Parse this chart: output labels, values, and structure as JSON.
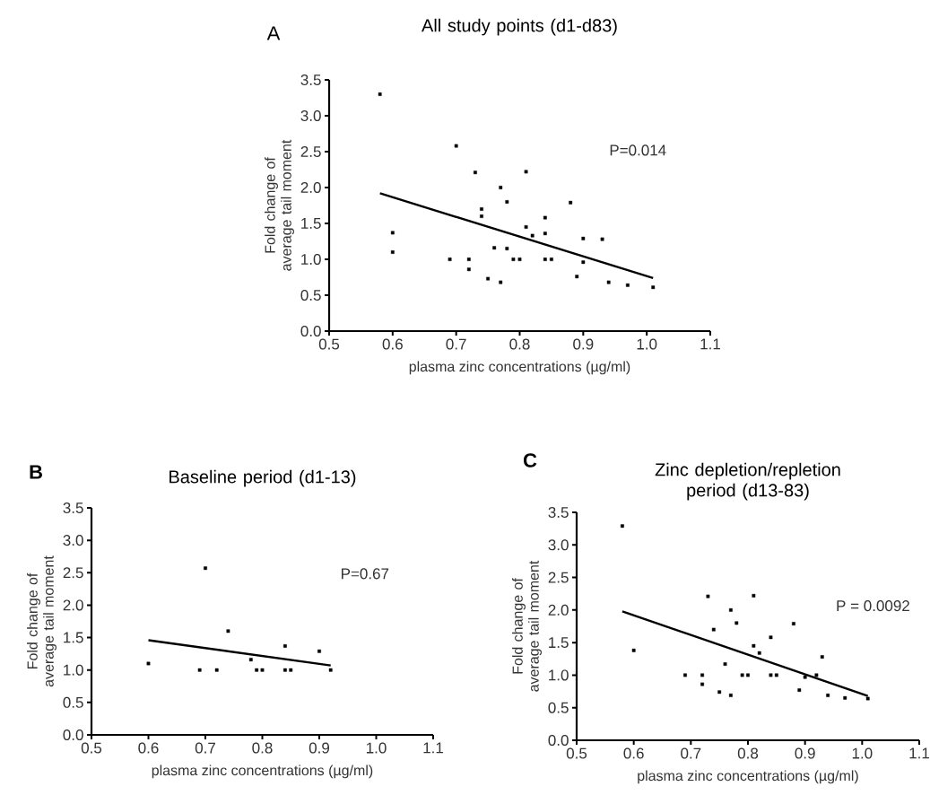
{
  "chart_data": [
    {
      "type": "scatter",
      "title": "All study points  (d1-d83)",
      "xlabel": "plasma zinc concentrations (µg/ml)",
      "ylabel": "Fold change of average tail moment",
      "annotations": [
        "A",
        "P=0.014"
      ],
      "xlim": [
        0.5,
        1.1
      ],
      "ylim": [
        0,
        3.5
      ],
      "xticks": [
        {
          "value": 0.5,
          "label": "0.5"
        },
        {
          "value": 0.6,
          "label": "0.6"
        },
        {
          "value": 0.7,
          "label": "0.7"
        },
        {
          "value": 0.8,
          "label": "0.8"
        },
        {
          "value": 0.9,
          "label": "0.9"
        },
        {
          "value": 1.0,
          "label": "1.0"
        },
        {
          "value": 1.1,
          "label": "1.1"
        }
      ],
      "yticks": [
        {
          "value": 0,
          "label": "0.0"
        },
        {
          "value": 0.5,
          "label": "0.5"
        },
        {
          "value": 1.0,
          "label": "1.0"
        },
        {
          "value": 1.5,
          "label": "1.5"
        },
        {
          "value": 2.0,
          "label": "2.0"
        },
        {
          "value": 2.5,
          "label": "2.5"
        },
        {
          "value": 3.0,
          "label": "3.0"
        },
        {
          "value": 3.5,
          "label": "3.5"
        }
      ],
      "series": [
        {
          "type": "scatter",
          "color": "#000000",
          "marker": "square",
          "x": [
            0.58,
            0.6,
            0.6,
            0.69,
            0.7,
            0.72,
            0.72,
            0.73,
            0.74,
            0.74,
            0.75,
            0.76,
            0.77,
            0.77,
            0.78,
            0.78,
            0.79,
            0.8,
            0.81,
            0.81,
            0.82,
            0.84,
            0.84,
            0.84,
            0.85,
            0.88,
            0.89,
            0.9,
            0.9,
            0.93,
            0.94,
            0.97,
            1.01
          ],
          "values": [
            3.3,
            1.37,
            1.1,
            1.0,
            2.58,
            1.0,
            0.86,
            2.21,
            1.7,
            1.6,
            0.73,
            1.16,
            2.0,
            0.68,
            1.8,
            1.15,
            1.0,
            1.0,
            2.22,
            1.45,
            1.33,
            1.58,
            1.36,
            1.0,
            1.0,
            1.79,
            0.76,
            1.29,
            0.96,
            1.28,
            0.68,
            0.64,
            0.61
          ]
        },
        {
          "type": "line",
          "color": "#000000",
          "marker": "none",
          "line_style": "solid",
          "x": [
            0.58,
            1.01
          ],
          "values": [
            1.92,
            0.74
          ]
        }
      ]
    },
    {
      "type": "scatter",
      "title": "Baseline period (d1-13)",
      "xlabel": "plasma zinc concentrations (µg/ml)",
      "ylabel": "Fold change of average tail moment",
      "annotations": [
        "B",
        "P=0.67"
      ],
      "xlim": [
        0.5,
        1.1
      ],
      "ylim": [
        0,
        3.5
      ],
      "xticks": [
        {
          "value": 0.5,
          "label": "0.5"
        },
        {
          "value": 0.6,
          "label": "0.6"
        },
        {
          "value": 0.7,
          "label": "0.7"
        },
        {
          "value": 0.8,
          "label": "0.8"
        },
        {
          "value": 0.9,
          "label": "0.9"
        },
        {
          "value": 1.0,
          "label": "1.0"
        },
        {
          "value": 1.1,
          "label": "1.1"
        }
      ],
      "yticks": [
        {
          "value": 0,
          "label": "0.0"
        },
        {
          "value": 0.5,
          "label": "0.5"
        },
        {
          "value": 1.0,
          "label": "1.0"
        },
        {
          "value": 1.5,
          "label": "1.5"
        },
        {
          "value": 2.0,
          "label": "2.0"
        },
        {
          "value": 2.5,
          "label": "2.5"
        },
        {
          "value": 3.0,
          "label": "3.0"
        },
        {
          "value": 3.5,
          "label": "3.5"
        }
      ],
      "series": [
        {
          "type": "scatter",
          "color": "#000000",
          "marker": "square",
          "x": [
            0.6,
            0.69,
            0.7,
            0.72,
            0.74,
            0.78,
            0.79,
            0.8,
            0.84,
            0.84,
            0.85,
            0.9,
            0.92
          ],
          "values": [
            1.1,
            1.0,
            2.57,
            1.0,
            1.6,
            1.16,
            1.0,
            1.0,
            1.37,
            1.0,
            1.0,
            1.29,
            1.0
          ]
        },
        {
          "type": "line",
          "color": "#000000",
          "marker": "none",
          "line_style": "solid",
          "x": [
            0.6,
            0.92
          ],
          "values": [
            1.46,
            1.07
          ]
        }
      ]
    },
    {
      "type": "scatter",
      "title": "Zinc depletion/repletion period  (d13-83)",
      "xlabel": "plasma zinc concentrations (µg/ml)",
      "ylabel": "Fold change of average tail moment",
      "annotations": [
        "C",
        "P = 0.0092"
      ],
      "xlim": [
        0.5,
        1.1
      ],
      "ylim": [
        0,
        3.5
      ],
      "xticks": [
        {
          "value": 0.5,
          "label": "0.5"
        },
        {
          "value": 0.6,
          "label": "0.6"
        },
        {
          "value": 0.7,
          "label": "0.7"
        },
        {
          "value": 0.8,
          "label": "0.8"
        },
        {
          "value": 0.9,
          "label": "0.9"
        },
        {
          "value": 1.0,
          "label": "1.0"
        },
        {
          "value": 1.1,
          "label": "1.1"
        }
      ],
      "yticks": [
        {
          "value": 0,
          "label": "0.0"
        },
        {
          "value": 0.5,
          "label": "0.5"
        },
        {
          "value": 1.0,
          "label": "1.0"
        },
        {
          "value": 1.5,
          "label": "1.5"
        },
        {
          "value": 2.0,
          "label": "2.0"
        },
        {
          "value": 2.5,
          "label": "2.5"
        },
        {
          "value": 3.0,
          "label": "3.0"
        },
        {
          "value": 3.5,
          "label": "3.5"
        }
      ],
      "series": [
        {
          "type": "scatter",
          "color": "#000000",
          "marker": "square",
          "x": [
            0.58,
            0.6,
            0.69,
            0.72,
            0.72,
            0.73,
            0.74,
            0.75,
            0.76,
            0.77,
            0.77,
            0.78,
            0.79,
            0.8,
            0.81,
            0.81,
            0.82,
            0.84,
            0.84,
            0.85,
            0.88,
            0.89,
            0.9,
            0.92,
            0.93,
            0.94,
            0.97,
            1.01
          ],
          "values": [
            3.29,
            1.38,
            1.0,
            1.0,
            0.86,
            2.21,
            1.7,
            0.74,
            1.17,
            2.0,
            0.69,
            1.8,
            1.0,
            1.0,
            2.22,
            1.45,
            1.34,
            1.58,
            1.0,
            1.0,
            1.79,
            0.77,
            0.97,
            1.0,
            1.28,
            0.69,
            0.65,
            0.64
          ]
        },
        {
          "type": "line",
          "color": "#000000",
          "marker": "none",
          "line_style": "solid",
          "x": [
            0.58,
            1.01
          ],
          "values": [
            1.98,
            0.68
          ]
        }
      ]
    }
  ]
}
